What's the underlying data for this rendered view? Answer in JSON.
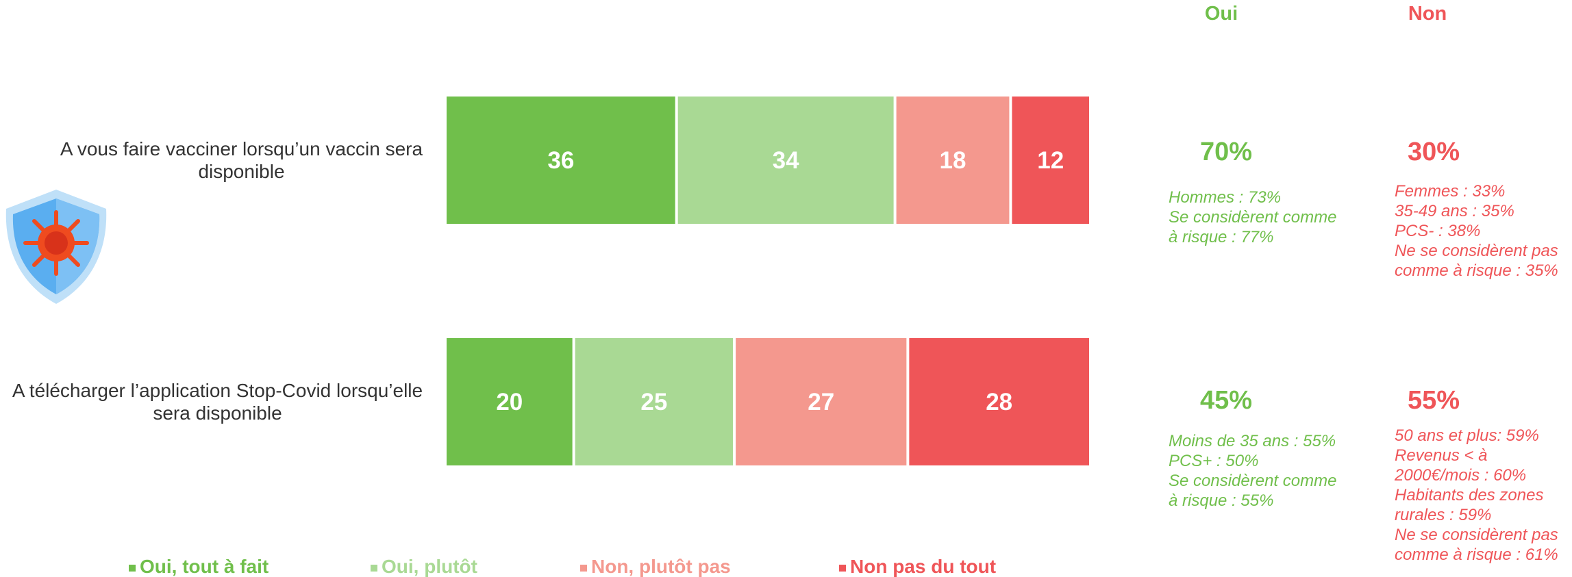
{
  "chart_data": {
    "type": "bar",
    "orientation": "horizontal",
    "stacked": true,
    "categories": [
      "A vous faire vacciner lorsqu’un vaccin sera disponible",
      "A télécharger l’application Stop-Covid lorsqu’elle sera disponible"
    ],
    "series": [
      {
        "name": "Oui, tout à fait",
        "color": "#70bf4b",
        "values": [
          36,
          20
        ]
      },
      {
        "name": "Oui, plutôt",
        "color": "#a9d994",
        "values": [
          34,
          25
        ]
      },
      {
        "name": "Non, plutôt pas",
        "color": "#f4988e",
        "values": [
          18,
          27
        ]
      },
      {
        "name": "Non pas du tout",
        "color": "#ef5558",
        "values": [
          12,
          28
        ]
      }
    ],
    "xlim": [
      0,
      100
    ],
    "legend": "bottom"
  },
  "summary": {
    "oui_header": "Oui",
    "non_header": "Non",
    "rows": [
      {
        "oui": "70%",
        "oui_details": [
          "Hommes : 73%",
          "Se considèrent comme",
          "à risque : 77%"
        ],
        "non": "30%",
        "non_details": [
          "Femmes : 33%",
          "35-49 ans : 35%",
          "PCS- : 38%",
          "Ne se considèrent pas",
          "comme à risque : 35%"
        ]
      },
      {
        "oui": "45%",
        "oui_details": [
          "Moins de 35 ans : 55%",
          "PCS+ : 50%",
          "Se considèrent comme",
          "à risque : 55%"
        ],
        "non": "55%",
        "non_details": [
          "50 ans et plus: 59%",
          "Revenus < à",
          "2000€/mois : 60%",
          "Habitants des zones",
          "rurales : 59%",
          "Ne se considèrent pas",
          "comme à risque : 61%"
        ]
      }
    ]
  }
}
